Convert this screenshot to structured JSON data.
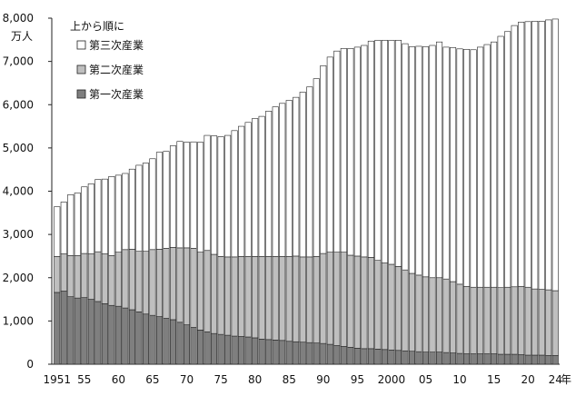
{
  "chart_data": {
    "type": "bar",
    "stacked": true,
    "title": "",
    "xlabel": "",
    "ylabel": "",
    "y_unit": "万人",
    "x_unit": "年",
    "ylim": [
      0,
      8000
    ],
    "yticks": [
      0,
      1000,
      2000,
      3000,
      4000,
      5000,
      6000,
      7000,
      8000
    ],
    "ytick_labels": [
      "0",
      "1,000",
      "2,000",
      "3,000",
      "4,000",
      "5,000",
      "6,000",
      "7,000",
      "8,000"
    ],
    "x": [
      1951,
      1952,
      1953,
      1954,
      1955,
      1956,
      1957,
      1958,
      1959,
      1960,
      1961,
      1962,
      1963,
      1964,
      1965,
      1966,
      1967,
      1968,
      1969,
      1970,
      1971,
      1972,
      1973,
      1974,
      1975,
      1976,
      1977,
      1978,
      1979,
      1980,
      1981,
      1982,
      1983,
      1984,
      1985,
      1986,
      1987,
      1988,
      1989,
      1990,
      1991,
      1992,
      1993,
      1994,
      1995,
      1996,
      1997,
      1998,
      1999,
      2000,
      2001,
      2002,
      2003,
      2004,
      2005,
      2006,
      2007,
      2008,
      2009,
      2010,
      2011,
      2012,
      2013,
      2014,
      2015,
      2016,
      2017,
      2018,
      2019,
      2020,
      2021,
      2022,
      2023,
      2024
    ],
    "xticks": [
      {
        "year": 1951,
        "label": "1951"
      },
      {
        "year": 1955,
        "label": "55"
      },
      {
        "year": 1960,
        "label": "60"
      },
      {
        "year": 1965,
        "label": "65"
      },
      {
        "year": 1970,
        "label": "70"
      },
      {
        "year": 1975,
        "label": "75"
      },
      {
        "year": 1980,
        "label": "80"
      },
      {
        "year": 1985,
        "label": "85"
      },
      {
        "year": 1990,
        "label": "90"
      },
      {
        "year": 1995,
        "label": "95"
      },
      {
        "year": 2000,
        "label": "2000"
      },
      {
        "year": 2005,
        "label": "05"
      },
      {
        "year": 2010,
        "label": "10"
      },
      {
        "year": 2015,
        "label": "15"
      },
      {
        "year": 2020,
        "label": "20"
      },
      {
        "year": 2024,
        "label": "24"
      }
    ],
    "legend": {
      "title": "上から順に",
      "position": "top-left"
    },
    "grid": false,
    "series": [
      {
        "name": "第一次産業",
        "color": "#7f7f7f",
        "values": [
          1660,
          1690,
          1560,
          1530,
          1540,
          1500,
          1450,
          1400,
          1360,
          1340,
          1300,
          1260,
          1210,
          1160,
          1130,
          1100,
          1060,
          1030,
          970,
          910,
          850,
          790,
          750,
          710,
          690,
          670,
          650,
          640,
          630,
          610,
          580,
          570,
          560,
          550,
          530,
          520,
          510,
          500,
          490,
          480,
          460,
          430,
          410,
          390,
          370,
          360,
          360,
          350,
          340,
          330,
          320,
          310,
          300,
          290,
          280,
          280,
          280,
          270,
          260,
          250,
          240,
          240,
          240,
          240,
          240,
          230,
          230,
          230,
          220,
          210,
          210,
          210,
          200,
          200
        ]
      },
      {
        "name": "第二次産業",
        "color": "#bfbfbf",
        "values": [
          830,
          860,
          950,
          980,
          1020,
          1050,
          1150,
          1150,
          1150,
          1250,
          1350,
          1400,
          1400,
          1450,
          1520,
          1560,
          1620,
          1670,
          1720,
          1780,
          1830,
          1800,
          1880,
          1830,
          1800,
          1810,
          1830,
          1850,
          1860,
          1880,
          1910,
          1920,
          1930,
          1940,
          1960,
          1980,
          1970,
          1980,
          2000,
          2080,
          2130,
          2160,
          2180,
          2130,
          2130,
          2120,
          2110,
          2050,
          2000,
          1980,
          1940,
          1870,
          1800,
          1770,
          1740,
          1720,
          1720,
          1700,
          1650,
          1600,
          1560,
          1540,
          1540,
          1540,
          1540,
          1540,
          1550,
          1560,
          1580,
          1570,
          1530,
          1520,
          1520,
          1500
        ]
      },
      {
        "name": "第三次産業",
        "color": "#ffffff",
        "values": [
          1150,
          1200,
          1410,
          1450,
          1540,
          1620,
          1670,
          1730,
          1830,
          1780,
          1760,
          1850,
          1990,
          2040,
          2100,
          2240,
          2240,
          2350,
          2460,
          2440,
          2460,
          2540,
          2660,
          2740,
          2770,
          2810,
          2920,
          3010,
          3100,
          3190,
          3240,
          3360,
          3460,
          3540,
          3610,
          3670,
          3810,
          3930,
          4110,
          4340,
          4510,
          4650,
          4710,
          4780,
          4830,
          4890,
          5000,
          5090,
          5150,
          5180,
          5230,
          5230,
          5240,
          5290,
          5320,
          5370,
          5450,
          5360,
          5410,
          5440,
          5480,
          5490,
          5550,
          5610,
          5670,
          5810,
          5910,
          6040,
          6110,
          6140,
          6190,
          6200,
          6240,
          6280
        ]
      }
    ]
  }
}
